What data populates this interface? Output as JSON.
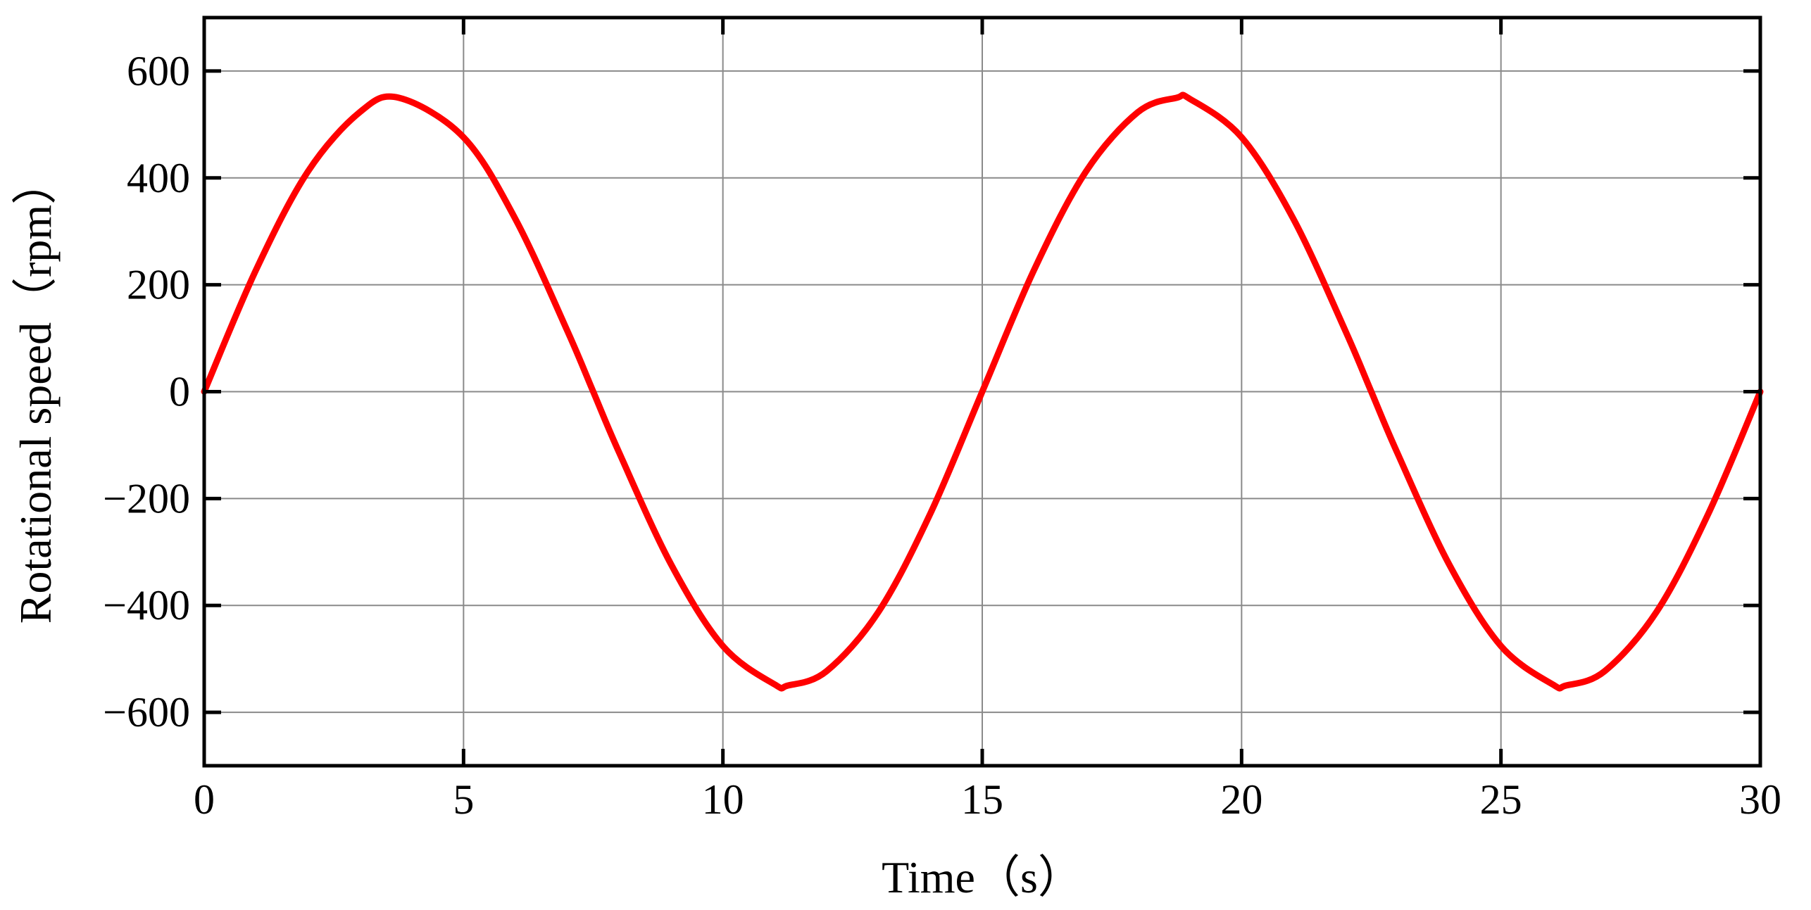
{
  "chart_data": {
    "type": "line",
    "title": "",
    "xlabel": "Time（s）",
    "ylabel": "Rotational speed（rpm）",
    "xlim": [
      0,
      30
    ],
    "ylim": [
      -700,
      700
    ],
    "xticks": [
      0,
      5,
      10,
      15,
      20,
      25,
      30
    ],
    "xtick_labels": [
      "0",
      "5",
      "10",
      "15",
      "20",
      "25",
      "30"
    ],
    "yticks": [
      -600,
      -400,
      -200,
      0,
      200,
      400,
      600
    ],
    "ytick_labels": [
      "−600",
      "−400",
      "−200",
      "0",
      "200",
      "400",
      "600"
    ],
    "grid": true,
    "legend": "none",
    "series": [
      {
        "color": "#ff0000",
        "x": [
          0,
          1,
          2,
          3,
          3.75,
          5,
          6,
          7,
          7.5,
          8,
          9,
          10,
          11,
          11.25,
          12,
          13,
          14,
          15,
          16,
          17,
          18,
          18.75,
          19,
          20,
          21,
          22,
          22.5,
          23,
          24,
          25,
          26,
          26.25,
          27,
          28,
          29,
          30
        ],
        "y": [
          0,
          228,
          412,
          523,
          550,
          476,
          323,
          114,
          0,
          -114,
          -323,
          -476,
          -548,
          -550,
          -523,
          -412,
          -228,
          0,
          228,
          412,
          523,
          550,
          548,
          476,
          323,
          114,
          0,
          -114,
          -323,
          -476,
          -548,
          -550,
          -523,
          -412,
          -228,
          0
        ]
      }
    ]
  }
}
